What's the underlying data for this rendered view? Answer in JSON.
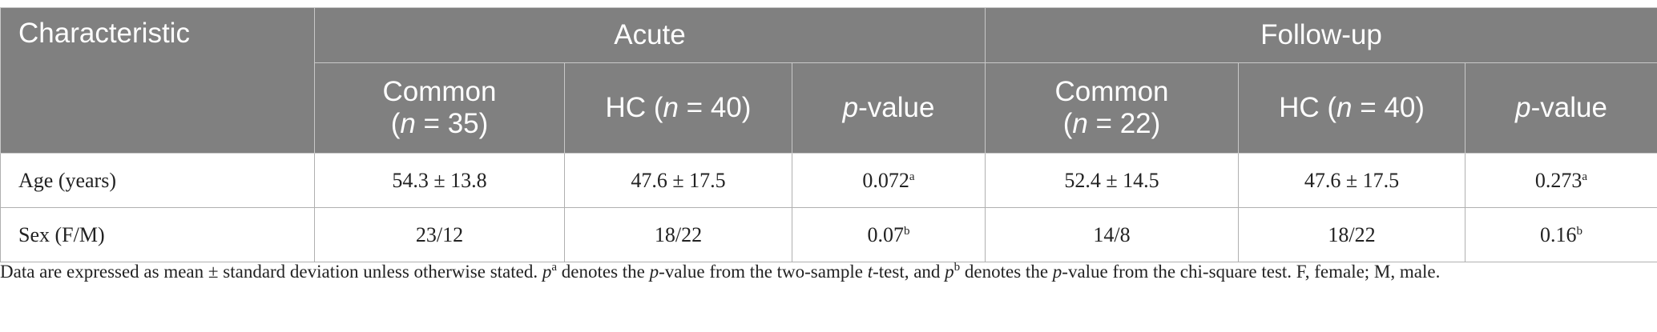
{
  "table": {
    "header": [
      [
        [
          [
            {
              "text": "Characteristic"
            }
          ]
        ],
        [
          [
            {
              "text": "Acute"
            }
          ]
        ],
        [
          [
            {
              "text": "Follow-up"
            }
          ]
        ]
      ],
      [
        [
          [
            {
              "text": "Common"
            }
          ],
          [
            {
              "text": "("
            },
            {
              "text": "n",
              "style": "italic"
            },
            {
              "text": " = 35)"
            }
          ]
        ],
        [
          [
            {
              "text": "HC ("
            },
            {
              "text": "n",
              "style": "italic"
            },
            {
              "text": " = 40)"
            }
          ]
        ],
        [
          [
            {
              "text": "p",
              "style": "italic"
            },
            {
              "text": "-value"
            }
          ]
        ],
        [
          [
            {
              "text": "Common"
            }
          ],
          [
            {
              "text": "("
            },
            {
              "text": "n",
              "style": "italic"
            },
            {
              "text": " = 22)"
            }
          ]
        ],
        [
          [
            {
              "text": "HC ("
            },
            {
              "text": "n",
              "style": "italic"
            },
            {
              "text": " = 40)"
            }
          ]
        ],
        [
          [
            {
              "text": "p",
              "style": "italic"
            },
            {
              "text": "-value"
            }
          ]
        ]
      ]
    ],
    "rows": [
      [
        [
          {
            "text": "Age (years)"
          }
        ],
        [
          {
            "text": "54.3 ± 13.8"
          }
        ],
        [
          {
            "text": "47.6 ± 17.5"
          }
        ],
        [
          {
            "text": "0.072"
          },
          {
            "text": "a",
            "style": "sup"
          }
        ],
        [
          {
            "text": "52.4 ± 14.5"
          }
        ],
        [
          {
            "text": "47.6 ± 17.5"
          }
        ],
        [
          {
            "text": "0.273"
          },
          {
            "text": "a",
            "style": "sup"
          }
        ]
      ],
      [
        [
          {
            "text": "Sex (F/M)"
          }
        ],
        [
          {
            "text": "23/12"
          }
        ],
        [
          {
            "text": "18/22"
          }
        ],
        [
          {
            "text": "0.07"
          },
          {
            "text": "b",
            "style": "sup"
          }
        ],
        [
          {
            "text": "14/8"
          }
        ],
        [
          {
            "text": "18/22"
          }
        ],
        [
          {
            "text": "0.16"
          },
          {
            "text": "b",
            "style": "sup"
          }
        ]
      ]
    ],
    "footnote": [
      {
        "text": "Data are expressed as mean ± standard deviation unless otherwise stated. "
      },
      {
        "text": "p",
        "style": "italic"
      },
      {
        "text": "a",
        "style": "sup"
      },
      {
        "text": " denotes the "
      },
      {
        "text": "p",
        "style": "italic"
      },
      {
        "text": "-value from the two-sample "
      },
      {
        "text": "t",
        "style": "italic"
      },
      {
        "text": "-test, and "
      },
      {
        "text": "p",
        "style": "italic"
      },
      {
        "text": "b",
        "style": "sup"
      },
      {
        "text": " denotes the "
      },
      {
        "text": "p",
        "style": "italic"
      },
      {
        "text": "-value from the chi-square test. F, female; M, male."
      }
    ]
  }
}
